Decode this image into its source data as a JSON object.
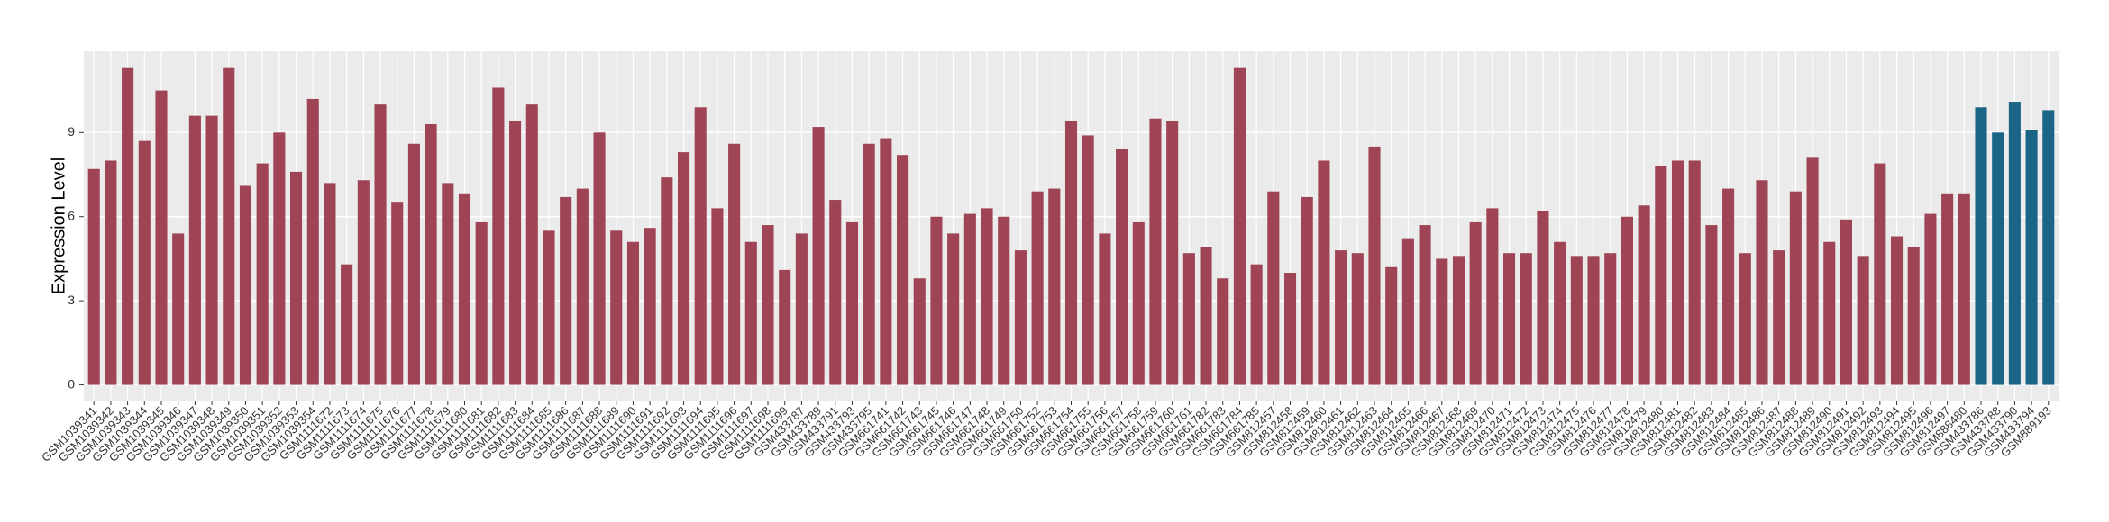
{
  "chart_data": {
    "type": "bar",
    "y_label": "Expression Level",
    "categories": [
      "GSM1039341",
      "GSM1039342",
      "GSM1039343",
      "GSM1039344",
      "GSM1039345",
      "GSM1039346",
      "GSM1039347",
      "GSM1039348",
      "GSM1039349",
      "GSM1039350",
      "GSM1039351",
      "GSM1039352",
      "GSM1039353",
      "GSM1039354",
      "GSM1111672",
      "GSM1111673",
      "GSM1111674",
      "GSM1111675",
      "GSM1111676",
      "GSM1111677",
      "GSM1111678",
      "GSM1111679",
      "GSM1111680",
      "GSM1111681",
      "GSM1111682",
      "GSM1111683",
      "GSM1111684",
      "GSM1111685",
      "GSM1111686",
      "GSM1111687",
      "GSM1111688",
      "GSM1111689",
      "GSM1111690",
      "GSM1111691",
      "GSM1111692",
      "GSM1111693",
      "GSM1111694",
      "GSM1111695",
      "GSM1111696",
      "GSM1111697",
      "GSM1111698",
      "GSM1111699",
      "GSM433787",
      "GSM433789",
      "GSM433791",
      "GSM433793",
      "GSM433795",
      "GSM661741",
      "GSM661742",
      "GSM661743",
      "GSM661745",
      "GSM661746",
      "GSM661747",
      "GSM661748",
      "GSM661749",
      "GSM661750",
      "GSM661752",
      "GSM661753",
      "GSM661754",
      "GSM661755",
      "GSM661756",
      "GSM661757",
      "GSM661758",
      "GSM661759",
      "GSM661760",
      "GSM661761",
      "GSM661782",
      "GSM661783",
      "GSM661784",
      "GSM661785",
      "GSM812457",
      "GSM812458",
      "GSM812459",
      "GSM812460",
      "GSM812461",
      "GSM812462",
      "GSM812463",
      "GSM812464",
      "GSM812465",
      "GSM812466",
      "GSM812467",
      "GSM812468",
      "GSM812469",
      "GSM812470",
      "GSM812471",
      "GSM812472",
      "GSM812473",
      "GSM812474",
      "GSM812475",
      "GSM812476",
      "GSM812477",
      "GSM812478",
      "GSM812479",
      "GSM812480",
      "GSM812481",
      "GSM812482",
      "GSM812483",
      "GSM812484",
      "GSM812485",
      "GSM812486",
      "GSM812487",
      "GSM812488",
      "GSM812489",
      "GSM812490",
      "GSM812491",
      "GSM812492",
      "GSM812493",
      "GSM812494",
      "GSM812495",
      "GSM812496",
      "GSM812497",
      "GSM888480",
      "GSM433786",
      "GSM433788",
      "GSM433790",
      "GSM433794",
      "GSM889193"
    ],
    "values": [
      7.7,
      8.0,
      11.3,
      8.7,
      10.5,
      5.4,
      9.6,
      9.6,
      11.3,
      7.1,
      7.9,
      9.0,
      7.6,
      10.2,
      7.2,
      4.3,
      7.3,
      10.0,
      6.5,
      8.6,
      9.3,
      7.2,
      6.8,
      5.8,
      10.6,
      9.4,
      10.0,
      5.5,
      6.7,
      7.0,
      9.0,
      5.5,
      5.1,
      5.6,
      7.4,
      8.3,
      9.9,
      6.3,
      8.6,
      5.1,
      5.7,
      4.1,
      5.4,
      9.2,
      6.6,
      5.8,
      8.6,
      8.8,
      8.2,
      3.8,
      6.0,
      5.4,
      6.1,
      6.3,
      6.0,
      4.8,
      6.9,
      7.0,
      9.4,
      8.9,
      5.4,
      8.4,
      5.8,
      9.5,
      9.4,
      4.7,
      4.9,
      3.8,
      11.3,
      4.3,
      6.9,
      4.0,
      6.7,
      8.0,
      4.8,
      4.7,
      8.5,
      4.2,
      5.2,
      5.7,
      4.5,
      4.6,
      5.8,
      6.3,
      4.7,
      4.7,
      6.2,
      5.1,
      4.6,
      4.6,
      4.7,
      6.0,
      6.4,
      7.8,
      8.0,
      8.0,
      5.7,
      7.0,
      4.7,
      7.3,
      4.8,
      6.9,
      8.1,
      5.1,
      5.9,
      4.6,
      7.9,
      5.3,
      4.9,
      6.1,
      6.8,
      6.8,
      9.9,
      9.0,
      10.1,
      9.1,
      9.8
    ],
    "colors": [
      "#9e4454",
      "#9e4454",
      "#9e4454",
      "#9e4454",
      "#9e4454",
      "#9e4454",
      "#9e4454",
      "#9e4454",
      "#9e4454",
      "#9e4454",
      "#9e4454",
      "#9e4454",
      "#9e4454",
      "#9e4454",
      "#9e4454",
      "#9e4454",
      "#9e4454",
      "#9e4454",
      "#9e4454",
      "#9e4454",
      "#9e4454",
      "#9e4454",
      "#9e4454",
      "#9e4454",
      "#9e4454",
      "#9e4454",
      "#9e4454",
      "#9e4454",
      "#9e4454",
      "#9e4454",
      "#9e4454",
      "#9e4454",
      "#9e4454",
      "#9e4454",
      "#9e4454",
      "#9e4454",
      "#9e4454",
      "#9e4454",
      "#9e4454",
      "#9e4454",
      "#9e4454",
      "#9e4454",
      "#9e4454",
      "#9e4454",
      "#9e4454",
      "#9e4454",
      "#9e4454",
      "#9e4454",
      "#9e4454",
      "#9e4454",
      "#9e4454",
      "#9e4454",
      "#9e4454",
      "#9e4454",
      "#9e4454",
      "#9e4454",
      "#9e4454",
      "#9e4454",
      "#9e4454",
      "#9e4454",
      "#9e4454",
      "#9e4454",
      "#9e4454",
      "#9e4454",
      "#9e4454",
      "#9e4454",
      "#9e4454",
      "#9e4454",
      "#9e4454",
      "#9e4454",
      "#9e4454",
      "#9e4454",
      "#9e4454",
      "#9e4454",
      "#9e4454",
      "#9e4454",
      "#9e4454",
      "#9e4454",
      "#9e4454",
      "#9e4454",
      "#9e4454",
      "#9e4454",
      "#9e4454",
      "#9e4454",
      "#9e4454",
      "#9e4454",
      "#9e4454",
      "#9e4454",
      "#9e4454",
      "#9e4454",
      "#9e4454",
      "#9e4454",
      "#9e4454",
      "#9e4454",
      "#9e4454",
      "#9e4454",
      "#9e4454",
      "#9e4454",
      "#9e4454",
      "#9e4454",
      "#9e4454",
      "#9e4454",
      "#9e4454",
      "#9e4454",
      "#9e4454",
      "#9e4454",
      "#9e4454",
      "#9e4454",
      "#9e4454",
      "#9e4454",
      "#9e4454",
      "#9e4454",
      "#1a6585",
      "#1a6585",
      "#1a6585",
      "#1a6585",
      "#1a6585"
    ],
    "ylim": [
      -0.56,
      11.9
    ],
    "yticks": [
      0,
      3,
      6,
      9
    ],
    "grid": true
  }
}
